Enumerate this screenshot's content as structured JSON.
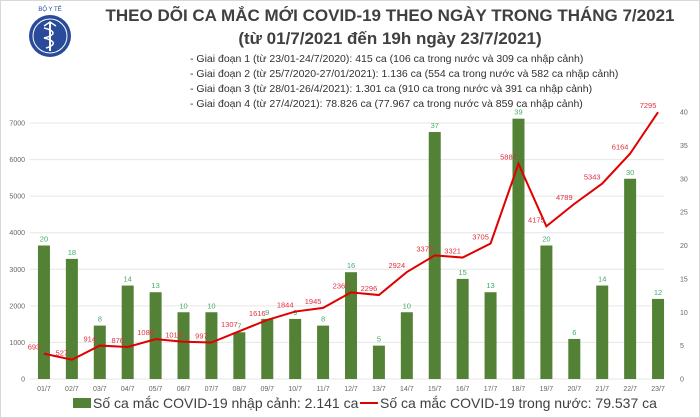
{
  "header": {
    "title": "THEO DÕI CA MẮC MỚI COVID-19 THEO NGÀY TRONG THÁNG 7/2021",
    "subtitle": "(từ 01/7/2021 đến 19h ngày 23/7/2021)",
    "notes": [
      "- Giai đoạn 1 (từ 23/01-24/7/2020): 415 ca (106 ca trong nước và 309 ca nhập cảnh)",
      "- Giai đoạn 2 (từ 25/7/2020-27/01/2021): 1.136 ca (554 ca trong nước và 582 ca nhập cảnh)",
      "- Giai đoạn 3 (từ 28/01-26/4/2021): 1.301 ca (910 ca trong nước và 391 ca nhập cảnh)",
      "- Giai đoạn 4 (từ 27/4/2021): 78.826 ca (77.967 ca trong nước và 859 ca nhập cảnh)"
    ],
    "logo_text": "BỘ Y TẾ"
  },
  "chart_data": {
    "type": "bar+line",
    "categories": [
      "01/7",
      "02/7",
      "03/7",
      "04/7",
      "05/7",
      "06/7",
      "07/7",
      "08/7",
      "09/7",
      "10/7",
      "11/7",
      "12/7",
      "13/7",
      "14/7",
      "15/7",
      "16/7",
      "17/7",
      "18/7",
      "19/7",
      "20/7",
      "21/7",
      "22/7",
      "23/7"
    ],
    "series": [
      {
        "name": "Số ca mắc COVID-19 nhập cảnh: 2.141 ca",
        "type": "bar",
        "axis": "right",
        "color": "#538135",
        "label_color": "#3fae6a",
        "values": [
          20,
          18,
          8,
          14,
          13,
          10,
          10,
          7,
          9,
          9,
          8,
          16,
          5,
          10,
          37,
          15,
          13,
          39,
          20,
          6,
          14,
          30,
          12
        ]
      },
      {
        "name": "Số ca mắc COVID-19 trong nước: 79.537 ca",
        "type": "line",
        "axis": "left",
        "color": "#e00000",
        "label_color": "#e03040",
        "values": [
          693,
          527,
          914,
          876,
          1089,
          1019,
          997,
          1307,
          1616,
          1844,
          1945,
          2367,
          2296,
          2924,
          3379,
          3321,
          3705,
          5887,
          4175,
          4789,
          5343,
          6164,
          7295
        ]
      }
    ],
    "left_axis": {
      "ticks": [
        0,
        1000,
        2000,
        3000,
        4000,
        5000,
        6000,
        7000
      ]
    },
    "right_axis": {
      "ticks": [
        0,
        5,
        10,
        15,
        20,
        25,
        30,
        35,
        40
      ]
    },
    "grid": true,
    "legend_position": "bottom"
  }
}
